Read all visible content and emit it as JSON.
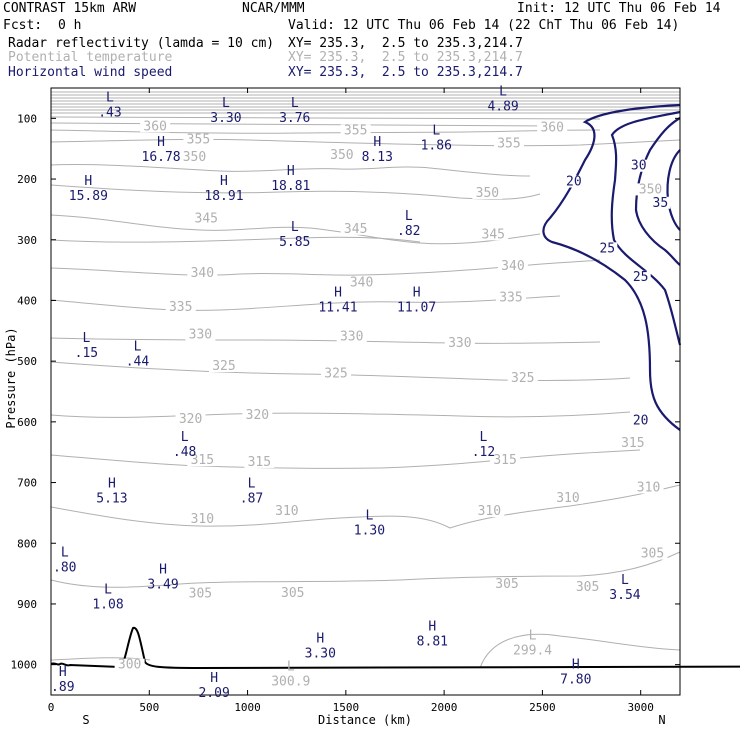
{
  "header": {
    "model": "CONTRAST 15km ARW",
    "center": "NCAR/MMM",
    "init": "Init: 12 UTC Thu 06 Feb 14",
    "fcst_label": "Fcst:",
    "fcst_value": "0 h",
    "valid": "Valid: 12 UTC Thu 06 Feb 14 (22 ChT Thu 06 Feb 14)",
    "fields": [
      {
        "name": "Radar reflectivity (lamda = 10 cm)",
        "xy": "XY= 235.3,  2.5 to 235.3,214.7",
        "color": "#000000"
      },
      {
        "name": "Potential temperature",
        "xy": "XY= 235.3,  2.5 to 235.3,214.7",
        "color": "#b0b0b0"
      },
      {
        "name": "Horizontal wind speed",
        "xy": "XY= 235.3,  2.5 to 235.3,214.7",
        "color": "#1a1a6e"
      }
    ]
  },
  "chart_data": {
    "type": "cross-section",
    "xlabel": "Distance (km)",
    "ylabel": "Pressure (hPa)",
    "xlim": [
      0,
      3200
    ],
    "ylim": [
      1050,
      50
    ],
    "x_ticks": [
      0,
      500,
      1000,
      1500,
      2000,
      2500,
      3000
    ],
    "y_ticks": [
      100,
      200,
      300,
      400,
      500,
      600,
      700,
      800,
      900,
      1000
    ],
    "x_ends": {
      "left": "S",
      "right": "N"
    },
    "colors": {
      "theta": "#b0b0b0",
      "wind": "#1a1a6e",
      "terrain": "#000000",
      "axes": "#000000"
    },
    "theta_labels": [
      {
        "text": "360",
        "x": 530,
        "p": 118
      },
      {
        "text": "355",
        "x": 750,
        "p": 140
      },
      {
        "text": "355",
        "x": 1550,
        "p": 125
      },
      {
        "text": "360",
        "x": 2550,
        "p": 120
      },
      {
        "text": "355",
        "x": 2330,
        "p": 146
      },
      {
        "text": "350",
        "x": 730,
        "p": 169
      },
      {
        "text": "350",
        "x": 1480,
        "p": 165
      },
      {
        "text": "350",
        "x": 2220,
        "p": 228
      },
      {
        "text": "350",
        "x": 3050,
        "p": 222
      },
      {
        "text": "345",
        "x": 790,
        "p": 270
      },
      {
        "text": "345",
        "x": 1550,
        "p": 287
      },
      {
        "text": "345",
        "x": 2250,
        "p": 296
      },
      {
        "text": "340",
        "x": 770,
        "p": 360
      },
      {
        "text": "340",
        "x": 1580,
        "p": 375
      },
      {
        "text": "340",
        "x": 2350,
        "p": 348
      },
      {
        "text": "335",
        "x": 660,
        "p": 416
      },
      {
        "text": "335",
        "x": 2340,
        "p": 400
      },
      {
        "text": "330",
        "x": 760,
        "p": 461
      },
      {
        "text": "330",
        "x": 1530,
        "p": 464
      },
      {
        "text": "330",
        "x": 2080,
        "p": 475
      },
      {
        "text": "325",
        "x": 880,
        "p": 513
      },
      {
        "text": "325",
        "x": 1450,
        "p": 525
      },
      {
        "text": "325",
        "x": 2400,
        "p": 533
      },
      {
        "text": "320",
        "x": 710,
        "p": 600
      },
      {
        "text": "320",
        "x": 1050,
        "p": 594
      },
      {
        "text": "315",
        "x": 770,
        "p": 668
      },
      {
        "text": "315",
        "x": 1060,
        "p": 671
      },
      {
        "text": "315",
        "x": 2310,
        "p": 668
      },
      {
        "text": "315",
        "x": 2960,
        "p": 640
      },
      {
        "text": "310",
        "x": 770,
        "p": 765
      },
      {
        "text": "310",
        "x": 1200,
        "p": 752
      },
      {
        "text": "310",
        "x": 2230,
        "p": 752
      },
      {
        "text": "310",
        "x": 2630,
        "p": 730
      },
      {
        "text": "310",
        "x": 3040,
        "p": 713
      },
      {
        "text": "305",
        "x": 760,
        "p": 888
      },
      {
        "text": "305",
        "x": 1230,
        "p": 887
      },
      {
        "text": "305",
        "x": 2320,
        "p": 872
      },
      {
        "text": "305",
        "x": 2730,
        "p": 877
      },
      {
        "text": "305",
        "x": 3060,
        "p": 822
      },
      {
        "text": "300",
        "x": 400,
        "p": 1005
      }
    ],
    "extrema": [
      {
        "type": "L",
        "value": ".43",
        "x": 300,
        "p": 84
      },
      {
        "type": "L",
        "value": "3.30",
        "x": 890,
        "p": 93
      },
      {
        "type": "L",
        "value": "3.76",
        "x": 1240,
        "p": 93
      },
      {
        "type": "L",
        "value": "4.89",
        "x": 2300,
        "p": 74
      },
      {
        "type": "L",
        "value": "1.86",
        "x": 1960,
        "p": 138
      },
      {
        "type": "H",
        "value": "16.78",
        "x": 560,
        "p": 157
      },
      {
        "type": "H",
        "value": "8.13",
        "x": 1660,
        "p": 157
      },
      {
        "type": "H",
        "value": "15.89",
        "x": 190,
        "p": 221
      },
      {
        "type": "H",
        "value": "18.91",
        "x": 880,
        "p": 221
      },
      {
        "type": "H",
        "value": "18.81",
        "x": 1220,
        "p": 205
      },
      {
        "type": "L",
        "value": ".82",
        "x": 1820,
        "p": 279
      },
      {
        "type": "L",
        "value": "5.85",
        "x": 1240,
        "p": 297
      },
      {
        "type": "H",
        "value": "11.41",
        "x": 1460,
        "p": 405
      },
      {
        "type": "H",
        "value": "11.07",
        "x": 1860,
        "p": 405
      },
      {
        "type": "L",
        "value": ".15",
        "x": 180,
        "p": 480
      },
      {
        "type": "L",
        "value": ".44",
        "x": 440,
        "p": 494
      },
      {
        "type": "L",
        "value": ".48",
        "x": 680,
        "p": 643
      },
      {
        "type": "L",
        "value": ".12",
        "x": 2200,
        "p": 643
      },
      {
        "type": "H",
        "value": "5.13",
        "x": 310,
        "p": 720
      },
      {
        "type": "L",
        "value": ".87",
        "x": 1020,
        "p": 720
      },
      {
        "type": "L",
        "value": "1.30",
        "x": 1620,
        "p": 772
      },
      {
        "type": "L",
        "value": ".80",
        "x": 70,
        "p": 833
      },
      {
        "type": "H",
        "value": "3.49",
        "x": 570,
        "p": 861
      },
      {
        "type": "L",
        "value": "1.08",
        "x": 290,
        "p": 894
      },
      {
        "type": "L",
        "value": "3.54",
        "x": 2920,
        "p": 879
      },
      {
        "type": "H",
        "value": "8.81",
        "x": 1940,
        "p": 955
      },
      {
        "type": "H",
        "value": "3.30",
        "x": 1370,
        "p": 975
      },
      {
        "type": "H",
        "value": "7.80",
        "x": 2670,
        "p": 1018
      },
      {
        "type": "H",
        "value": "2.09",
        "x": 830,
        "p": 1040
      },
      {
        "type": "H",
        "value": ".89",
        "x": 60,
        "p": 1030
      }
    ],
    "theta_extrema": [
      {
        "type": "L",
        "value": "300.9",
        "x": 1220,
        "p": 1021
      },
      {
        "type": "L",
        "value": "299.4",
        "x": 2450,
        "p": 970
      }
    ],
    "wind_labels": [
      {
        "text": "20",
        "x": 2660,
        "p": 209
      },
      {
        "text": "30",
        "x": 2990,
        "p": 183
      },
      {
        "text": "35",
        "x": 3100,
        "p": 244
      },
      {
        "text": "25",
        "x": 2830,
        "p": 319
      },
      {
        "text": "25",
        "x": 3000,
        "p": 366
      },
      {
        "text": "20",
        "x": 3000,
        "p": 603
      }
    ]
  }
}
